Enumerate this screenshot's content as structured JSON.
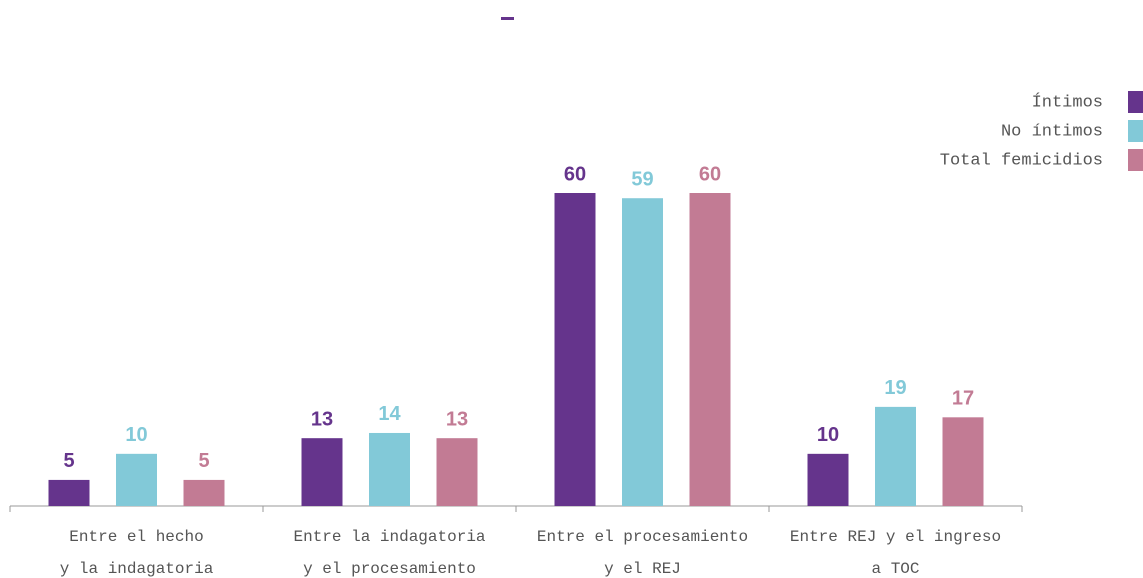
{
  "chart_data": {
    "type": "bar",
    "categories": [
      [
        "Entre el hecho",
        "y la indagatoria"
      ],
      [
        "Entre la indagatoria",
        "y el procesamiento"
      ],
      [
        "Entre el procesamiento",
        "y el REJ"
      ],
      [
        "Entre REJ y el ingreso",
        "a TOC"
      ]
    ],
    "series": [
      {
        "name": "Íntimos",
        "color": "#65348c",
        "values": [
          5,
          13,
          60,
          10
        ]
      },
      {
        "name": "No íntimos",
        "color": "#82c9d8",
        "values": [
          10,
          14,
          59,
          19
        ]
      },
      {
        "name": "Total femicidios",
        "color": "#c27b94",
        "values": [
          5,
          13,
          60,
          17
        ]
      }
    ],
    "legend": "top-right"
  }
}
